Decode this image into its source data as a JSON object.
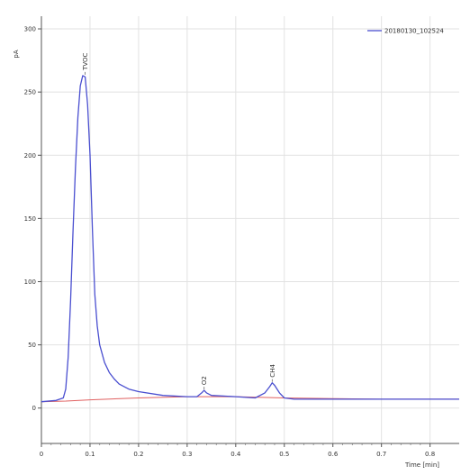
{
  "chart_data": {
    "type": "line",
    "title": "",
    "xlabel": "Time [min]",
    "ylabel": "pA",
    "xlim": [
      0,
      0.86
    ],
    "ylim": [
      -28,
      310
    ],
    "grid": true,
    "legend_placement": "top-right",
    "x_ticks": [
      0,
      0.1,
      0.2,
      0.3,
      0.4,
      0.5,
      0.6,
      0.7,
      0.8
    ],
    "x_tick_labels": [
      "0",
      "0.1",
      "0.2",
      "0.3",
      "0.4",
      "0.5",
      "0.6",
      "0.7",
      "0.8"
    ],
    "y_ticks": [
      0,
      50,
      100,
      150,
      200,
      250,
      300
    ],
    "y_tick_labels": [
      "0",
      "50",
      "100",
      "150",
      "200",
      "250",
      "300"
    ],
    "series": [
      {
        "name": "20180130_102524",
        "color": "#4a4fd0",
        "x": [
          0,
          0.03,
          0.045,
          0.05,
          0.055,
          0.06,
          0.065,
          0.07,
          0.075,
          0.08,
          0.085,
          0.09,
          0.095,
          0.1,
          0.105,
          0.11,
          0.115,
          0.12,
          0.13,
          0.14,
          0.15,
          0.16,
          0.18,
          0.2,
          0.25,
          0.3,
          0.32,
          0.33,
          0.335,
          0.34,
          0.35,
          0.4,
          0.44,
          0.46,
          0.47,
          0.475,
          0.48,
          0.49,
          0.5,
          0.52,
          0.6,
          0.7,
          0.8,
          0.86
        ],
        "y": [
          5,
          6,
          8,
          15,
          40,
          85,
          140,
          190,
          230,
          255,
          263,
          262,
          240,
          200,
          140,
          90,
          65,
          50,
          36,
          28,
          23,
          19,
          15,
          13,
          10,
          9,
          9,
          12,
          14,
          12,
          10,
          9,
          8,
          12,
          17,
          20,
          18,
          12,
          8,
          7,
          7,
          7,
          7,
          7
        ]
      },
      {
        "name": "",
        "color": "#e06060",
        "x": [
          0,
          0.05,
          0.1,
          0.2,
          0.3,
          0.4,
          0.5,
          0.6,
          0.7,
          0.8,
          0.86
        ],
        "y": [
          5,
          5.5,
          6.5,
          8,
          9,
          9,
          8,
          7.5,
          7,
          7,
          7
        ]
      }
    ],
    "annotations": [
      {
        "text": "TVOC",
        "x": 0.09,
        "y": 263
      },
      {
        "text": "O2",
        "x": 0.335,
        "y": 14
      },
      {
        "text": "CH4",
        "x": 0.475,
        "y": 20
      }
    ]
  }
}
